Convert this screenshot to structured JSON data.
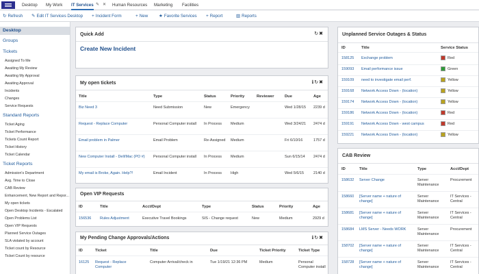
{
  "topnav": {
    "tabs": [
      "Desktop",
      "My Work",
      "IT Services",
      "Human Resources",
      "Marketing",
      "Facilities"
    ],
    "active": "IT Services"
  },
  "toolbar": {
    "refresh": "Refresh",
    "edit": "Edit IT Services Desktop",
    "incident_form": "Incident Form",
    "new": "New",
    "favorite": "Favorite Services",
    "report": "Report",
    "reports": "Reports"
  },
  "sidebar": {
    "desktop": "Desktop",
    "groups": "Groups",
    "tickets": "Tickets",
    "ticket_items": [
      "Assigned To Me",
      "Awaiting My Review",
      "Awaiting My Approval",
      "Awaiting Approval",
      "Incidents",
      "Changes",
      "Service Requests"
    ],
    "standard_reports": "Standard Reports",
    "standard_items": [
      "Ticket Aging",
      "Ticket Performance",
      "Tickets Count Report",
      "Ticket History",
      "Ticket Calendar"
    ],
    "ticket_reports": "Ticket Reports",
    "report_items": [
      "Admission's Department",
      "Avg. Time to Close",
      "CAB Review",
      "Enhancement, New Report and Repor...",
      "My open tickets",
      "Open Desktop Incidents - Escalated",
      "Open Problems List",
      "Open VIP Requests",
      "Planned Service Outages",
      "SLA violated by account",
      "Ticket count by Resource",
      "Ticket Count by resource"
    ]
  },
  "quick_add": {
    "title": "Quick Add",
    "create_link": "Create New Incident"
  },
  "open_tickets": {
    "title": "My open tickets",
    "columns": [
      "Title",
      "Type",
      "Status",
      "Priority",
      "Reviewer",
      "Due",
      "Age"
    ],
    "rows": [
      [
        "Biz Need 3",
        "Need Submission",
        "New",
        "Emergency",
        "",
        "Wed 1/28/15",
        "2239 d"
      ],
      [
        "Request - Replace Computer",
        "Personal Computer install",
        "In Process",
        "Medium",
        "",
        "Wed 3/24/21",
        "2474 d"
      ],
      [
        "Email problem in Palmer",
        "Email Problem",
        "Re-Assigned",
        "Medium",
        "",
        "Fri 6/10/16",
        "1757 d"
      ],
      [
        "New Computer Install - Dell/Mac (PO #)",
        "Personal Computer install",
        "In Process",
        "Medium",
        "",
        "Sun 6/15/14",
        "2474 d"
      ],
      [
        "My email is Broke, Again. Help?!",
        "Email Incident",
        "In Process",
        "High",
        "",
        "Wed 5/6/15",
        "2140 d"
      ]
    ]
  },
  "vip_requests": {
    "title": "Open VIP Requests",
    "columns": [
      "ID",
      "Title",
      "Acct/Dept",
      "Type",
      "Status",
      "Priority",
      "Age"
    ],
    "rows": [
      [
        "156536",
        "Rules Adjustment",
        "Executive Travel Bookings",
        "SIS - Change request",
        "New",
        "Medium",
        "2929 d"
      ]
    ]
  },
  "pending_changes": {
    "title": "My Pending Change Approvals/Actions",
    "columns": [
      "ID",
      "Ticket",
      "Title",
      "Due",
      "Ticket Priority",
      "Ticket Type"
    ],
    "rows": [
      [
        "16125",
        "Request - Replace Computer",
        "Computer Arrival/check in",
        "Tue 1/19/21 12:36 PM",
        "Medium",
        "Personal Computer install"
      ]
    ]
  },
  "outages": {
    "title": "Unplanned Service Outages & Status",
    "columns": [
      "ID",
      "Title",
      "Service Status"
    ],
    "rows": [
      [
        "158125",
        "Exchange problem",
        "Red",
        "#c0392b"
      ],
      [
        "159093",
        "Email performance issue",
        "Green",
        "#2e9b3a"
      ],
      [
        "159109",
        "need to investigate email perf.",
        "Yellow",
        "#b9a31f"
      ],
      [
        "159168",
        "Network Access Down - (location)",
        "Yellow",
        "#b9a31f"
      ],
      [
        "159174",
        "Network Access Down - (location)",
        "Yellow",
        "#b9a31f"
      ],
      [
        "159186",
        "Network Access Down - (location)",
        "Red",
        "#c0392b"
      ],
      [
        "159191",
        "Network Access Down - west campus",
        "Red",
        "#c0392b"
      ],
      [
        "159221",
        "Network Access Down - (location)",
        "Yellow",
        "#b9a31f"
      ]
    ]
  },
  "cab_review": {
    "title": "CAB Review",
    "columns": [
      "ID",
      "Title",
      "Type",
      "Acct/Dept"
    ],
    "rows": [
      [
        "158632",
        "Server Change",
        "Server Maintenance",
        "Procurement"
      ],
      [
        "158660",
        "[Server name + nature of change]",
        "Server Maintenance",
        "IT Services - Central"
      ],
      [
        "158681",
        "[Server name + nature of change]",
        "Server Maintenance",
        "IT Services - Central"
      ],
      [
        "158684",
        "LMS Server - Needs WORK",
        "Server Maintenance",
        "Procurement"
      ],
      [
        "158702",
        "[Server name + nature of change]",
        "Server Maintenance",
        "IT Services - Central"
      ],
      [
        "158728",
        "[Server name + nature of change]",
        "Server Maintenance",
        "IT Services - Central"
      ]
    ]
  }
}
